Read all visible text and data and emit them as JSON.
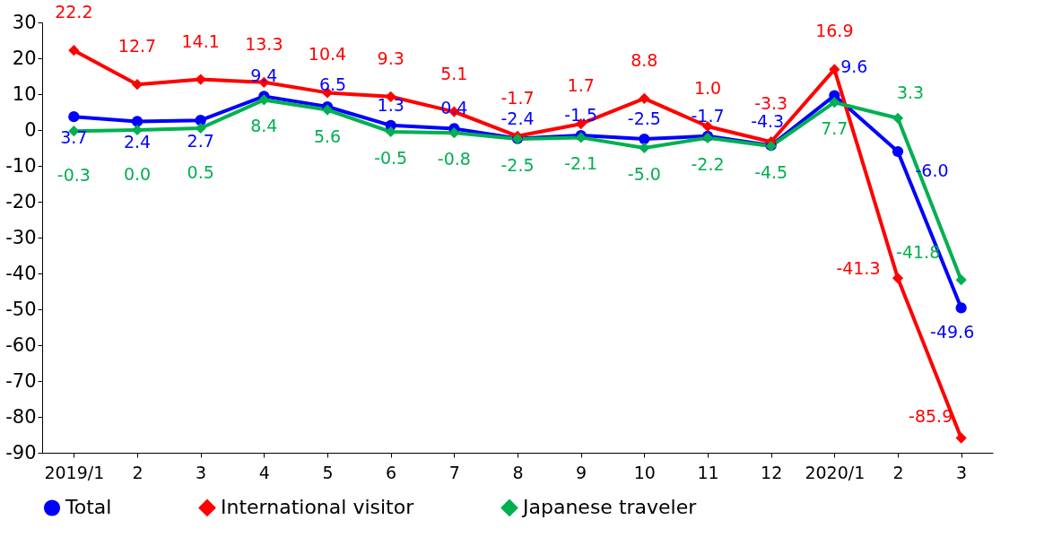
{
  "chart_data": {
    "type": "line",
    "categories": [
      "2019/1",
      "2",
      "3",
      "4",
      "5",
      "6",
      "7",
      "8",
      "9",
      "10",
      "11",
      "12",
      "2020/1",
      "2",
      "3"
    ],
    "ylim": [
      -90,
      30
    ],
    "yticks": [
      -90,
      -80,
      -70,
      -60,
      -50,
      -40,
      -30,
      -20,
      -10,
      0,
      10,
      20,
      30
    ],
    "grid": false,
    "legend": "bottom",
    "series": [
      {
        "name": "Total",
        "color": "#0000ff",
        "marker": "circle",
        "values": [
          3.7,
          2.4,
          2.7,
          9.4,
          6.5,
          1.3,
          0.4,
          -2.4,
          -1.5,
          -2.5,
          -1.7,
          -4.3,
          9.6,
          -6.0,
          -49.6
        ],
        "value_labels": [
          "3.7",
          "2.4",
          "2.7",
          "9.4",
          "6.5",
          "1.3",
          "0.4",
          "-2.4",
          "-1.5",
          "-2.5",
          "-1.7",
          "-4.3",
          "9.6",
          "-6.0",
          "-49.6"
        ]
      },
      {
        "name": "International visitor",
        "color": "#ff0000",
        "marker": "diamond",
        "values": [
          22.2,
          12.7,
          14.1,
          13.3,
          10.4,
          9.3,
          5.1,
          -1.7,
          1.7,
          8.8,
          1.0,
          -3.3,
          16.9,
          -41.3,
          -85.9
        ],
        "value_labels": [
          "22.2",
          "12.7",
          "14.1",
          "13.3",
          "10.4",
          "9.3",
          "5.1",
          "-1.7",
          "1.7",
          "8.8",
          "1.0",
          "-3.3",
          "16.9",
          "-41.3",
          "-85.9"
        ]
      },
      {
        "name": "Japanese traveler",
        "color": "#00b050",
        "marker": "diamond",
        "values": [
          -0.3,
          0.0,
          0.5,
          8.4,
          5.6,
          -0.5,
          -0.8,
          -2.5,
          -2.1,
          -5.0,
          -2.2,
          -4.5,
          7.7,
          3.3,
          -41.8
        ],
        "value_labels": [
          "-0.3",
          "0.0",
          "0.5",
          "8.4",
          "5.6",
          "-0.5",
          "-0.8",
          "-2.5",
          "-2.1",
          "-5.0",
          "-2.2",
          "-4.5",
          "7.7",
          "3.3",
          "-41.8"
        ]
      }
    ]
  }
}
